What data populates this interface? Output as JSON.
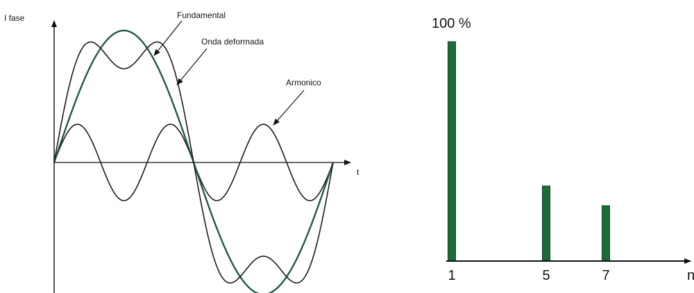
{
  "waveform": {
    "y_axis_label": "I fase",
    "x_axis_label": "t",
    "labels": {
      "fundamental": "Fundamental",
      "distorted": "Onda deformada",
      "harmonic": "Armonico"
    },
    "colors": {
      "fundamental": "#1f5a3f",
      "distorted": "#1a1a1a",
      "harmonic": "#1a1a1a"
    }
  },
  "spectrum": {
    "y_top_label": "100 %",
    "x_axis_label": "n",
    "bar_color": "#1e6b3a",
    "chart_data": {
      "type": "bar",
      "categories": [
        "1",
        "5",
        "7"
      ],
      "values": [
        100,
        34,
        25
      ],
      "ylim": [
        0,
        100
      ]
    }
  }
}
